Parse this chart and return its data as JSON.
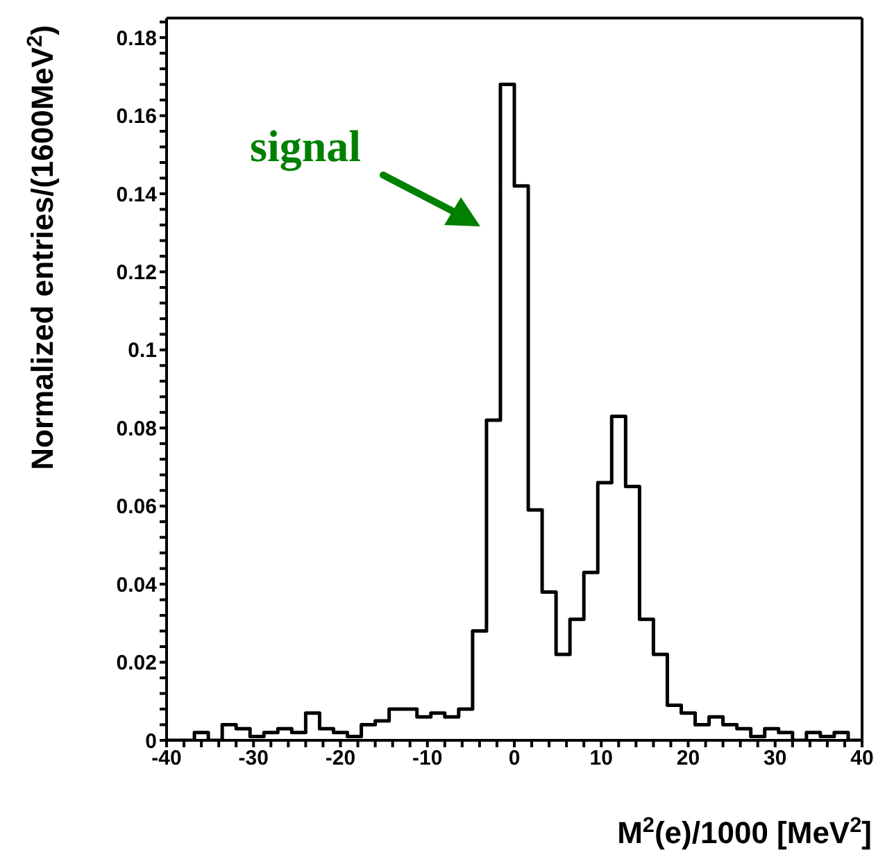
{
  "chart_data": {
    "type": "histogram",
    "xlabel": "M$^{2}$(e)/1000 [MeV$^{2}$]",
    "ylabel": "Normalized entries/(1600MeV$^{2}$)",
    "annotations": [
      "signal"
    ],
    "color": "#000000",
    "bins": [
      -40,
      -38.4,
      -36.8,
      -35.2,
      -33.6,
      -32,
      -30.4,
      -28.8,
      -27.2,
      -25.6,
      -24,
      -22.4,
      -20.8,
      -19.2,
      -17.6,
      -16,
      -14.4,
      -12.8,
      -11.2,
      -9.6,
      -8,
      -6.4,
      -4.8,
      -3.2,
      -1.6,
      0,
      1.6,
      3.2,
      4.8,
      6.4,
      8,
      9.6,
      11.2,
      12.8,
      14.4,
      16,
      17.6,
      19.2,
      20.8,
      22.4,
      24,
      25.6,
      27.2,
      28.8,
      30.4,
      32,
      33.6,
      35.2,
      36.8,
      38.4,
      40
    ],
    "values": [
      0,
      0,
      0.002,
      0,
      0.004,
      0.003,
      0.001,
      0.002,
      0.003,
      0.002,
      0.007,
      0.003,
      0.002,
      0.001,
      0.004,
      0.005,
      0.008,
      0.008,
      0.006,
      0.007,
      0.006,
      0.008,
      0.028,
      0.082,
      0.168,
      0.142,
      0.059,
      0.038,
      0.022,
      0.031,
      0.043,
      0.066,
      0.083,
      0.065,
      0.031,
      0.022,
      0.009,
      0.007,
      0.004,
      0.006,
      0.004,
      0.003,
      0.001,
      0.003,
      0.002,
      0,
      0.002,
      0.001,
      0.002,
      0
    ],
    "xlim": [
      -40,
      40
    ],
    "xticks": [
      -40,
      {
        "value": -38,
        "label": null
      },
      {
        "value": -36,
        "label": null
      },
      {
        "value": -34,
        "label": null
      },
      {
        "value": -32,
        "label": null
      },
      -30,
      {
        "value": -28,
        "label": null
      },
      {
        "value": -26,
        "label": null
      },
      {
        "value": -24,
        "label": null
      },
      {
        "value": -22,
        "label": null
      },
      -20,
      {
        "value": -18,
        "label": null
      },
      {
        "value": -16,
        "label": null
      },
      {
        "value": -14,
        "label": null
      },
      {
        "value": -12,
        "label": null
      },
      -10,
      {
        "value": -8,
        "label": null
      },
      {
        "value": -6,
        "label": null
      },
      {
        "value": -4,
        "label": null
      },
      {
        "value": -2,
        "label": null
      },
      0,
      {
        "value": 2,
        "label": null
      },
      {
        "value": 4,
        "label": null
      },
      {
        "value": 6,
        "label": null
      },
      {
        "value": 8,
        "label": null
      },
      10,
      {
        "value": 12,
        "label": null
      },
      {
        "value": 14,
        "label": null
      },
      {
        "value": 16,
        "label": null
      },
      {
        "value": 18,
        "label": null
      },
      20,
      {
        "value": 22,
        "label": null
      },
      {
        "value": 24,
        "label": null
      },
      {
        "value": 26,
        "label": null
      },
      {
        "value": 28,
        "label": null
      },
      30,
      {
        "value": 32,
        "label": null
      },
      {
        "value": 34,
        "label": null
      },
      {
        "value": 36,
        "label": null
      },
      {
        "value": 38,
        "label": null
      },
      40
    ],
    "ylim": [
      0,
      0.185
    ],
    "yticks": [
      0,
      {
        "value": 0.004,
        "label": null
      },
      {
        "value": 0.008,
        "label": null
      },
      {
        "value": 0.012,
        "label": null
      },
      {
        "value": 0.016,
        "label": null
      },
      0.02,
      {
        "value": 0.024,
        "label": null
      },
      {
        "value": 0.028,
        "label": null
      },
      {
        "value": 0.032,
        "label": null
      },
      {
        "value": 0.036,
        "label": null
      },
      0.04,
      {
        "value": 0.044,
        "label": null
      },
      {
        "value": 0.048,
        "label": null
      },
      {
        "value": 0.052,
        "label": null
      },
      {
        "value": 0.056,
        "label": null
      },
      0.06,
      {
        "value": 0.064,
        "label": null
      },
      {
        "value": 0.068,
        "label": null
      },
      {
        "value": 0.072,
        "label": null
      },
      {
        "value": 0.076,
        "label": null
      },
      0.08,
      {
        "value": 0.084,
        "label": null
      },
      {
        "value": 0.088,
        "label": null
      },
      {
        "value": 0.092,
        "label": null
      },
      {
        "value": 0.096,
        "label": null
      },
      0.1,
      {
        "value": 0.104,
        "label": null
      },
      {
        "value": 0.108,
        "label": null
      },
      {
        "value": 0.112,
        "label": null
      },
      {
        "value": 0.116,
        "label": null
      },
      0.12,
      {
        "value": 0.124,
        "label": null
      },
      {
        "value": 0.128,
        "label": null
      },
      {
        "value": 0.132,
        "label": null
      },
      {
        "value": 0.136,
        "label": null
      },
      0.14,
      {
        "value": 0.144,
        "label": null
      },
      {
        "value": 0.148,
        "label": null
      },
      {
        "value": 0.152,
        "label": null
      },
      {
        "value": 0.156,
        "label": null
      },
      0.16,
      {
        "value": 0.164,
        "label": null
      },
      {
        "value": 0.168,
        "label": null
      },
      {
        "value": 0.172,
        "label": null
      },
      {
        "value": 0.176,
        "label": null
      },
      0.18,
      {
        "value": 0.184,
        "label": null
      }
    ]
  }
}
